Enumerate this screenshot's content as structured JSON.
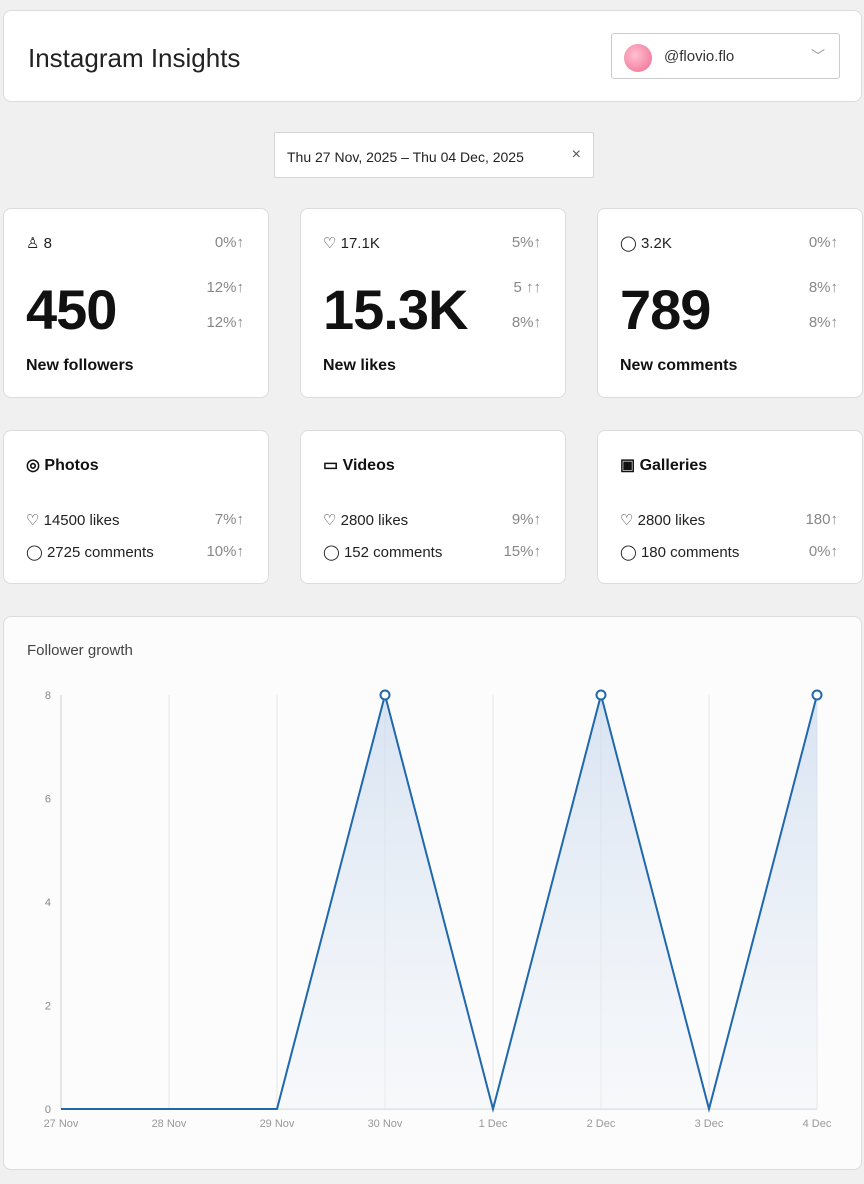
{
  "header": {
    "title": "Instagram Insights",
    "account": "@flovio.flo"
  },
  "date_range": {
    "value": "Thu 27 Nov, 2025 – Thu 04 Dec, 2025",
    "clear": "×"
  },
  "stats": [
    {
      "icon": "user-icon",
      "glyph": "♙",
      "small": "8",
      "small_pct": "0%↑",
      "value": "450",
      "pct1": "12%↑",
      "pct2": "12%↑",
      "label": "New followers"
    },
    {
      "icon": "heart-icon",
      "glyph": "♡",
      "small": "17.1K",
      "small_pct": "5%↑",
      "value": "15.3K",
      "pct1": "5 ↑↑",
      "pct2": "8%↑",
      "label": "New likes"
    },
    {
      "icon": "comment-icon",
      "glyph": "◯",
      "small": "3.2K",
      "small_pct": "0%↑",
      "value": "789",
      "pct1": "8%↑",
      "pct2": "8%↑",
      "label": "New comments"
    }
  ],
  "media": [
    {
      "icon": "instagram-icon",
      "glyph": "◎",
      "title": "Photos",
      "likes": "14500 likes",
      "likes_pct": "7%↑",
      "comments": "2725 comments",
      "comments_pct": "10%↑"
    },
    {
      "icon": "video-icon",
      "glyph": "▭",
      "title": "Videos",
      "likes": "2800 likes",
      "likes_pct": "9%↑",
      "comments": "152 comments",
      "comments_pct": "15%↑"
    },
    {
      "icon": "gallery-icon",
      "glyph": "▣",
      "title": "Galleries",
      "likes": "2800 likes",
      "likes_pct": "180↑",
      "comments": "180 comments",
      "comments_pct": "0%↑"
    }
  ],
  "chart_data": {
    "type": "area",
    "title": "Follower growth",
    "categories": [
      "27 Nov",
      "28 Nov",
      "29 Nov",
      "30 Nov",
      "1 Dec",
      "2 Dec",
      "3 Dec",
      "4 Dec"
    ],
    "values": [
      0,
      0,
      0,
      8,
      0,
      8,
      0,
      8
    ],
    "ylim": [
      0,
      8
    ],
    "yticks": [
      0,
      2,
      4,
      6,
      8
    ],
    "grid": "vertical",
    "color": "#1f68ad"
  }
}
